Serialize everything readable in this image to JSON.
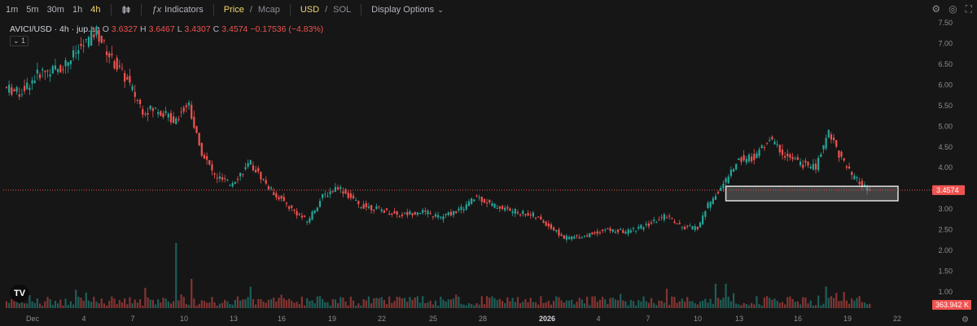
{
  "toolbar": {
    "timeframes": [
      "1m",
      "5m",
      "30m",
      "1h",
      "4h"
    ],
    "active_timeframe": "4h",
    "indicators_label": "Indicators",
    "price_label": "Price",
    "mcap_label": "Mcap",
    "usd_label": "USD",
    "sol_label": "SOL",
    "display_options_label": "Display Options"
  },
  "legend": {
    "symbol": "AVICI/USD · 4h · jup.ag",
    "open_key": "O",
    "open": "3.6327",
    "high_key": "H",
    "high": "3.6467",
    "low_key": "L",
    "low": "3.4307",
    "close_key": "C",
    "close": "3.4574",
    "change": "−0.17536 (−4.83%)",
    "series_badge": "1"
  },
  "colors": {
    "up": "#26a69a",
    "down": "#ef5350",
    "background": "#161616",
    "box": "#e0e0e0"
  },
  "price_label": "3.4574",
  "volume_label": "363.942 K",
  "chart_data": {
    "type": "candlestick",
    "title": "AVICI/USD · 4h · jup.ag",
    "y_ticks": [
      "7.50",
      "7.00",
      "6.50",
      "6.00",
      "5.50",
      "5.00",
      "4.50",
      "4.00",
      "3.50",
      "3.00",
      "2.50",
      "2.00",
      "1.50",
      "1.00"
    ],
    "ylim": [
      0.5,
      7.6
    ],
    "x_ticks": [
      "Dec",
      "4",
      "7",
      "10",
      "13",
      "16",
      "19",
      "22",
      "25",
      "28",
      "2026",
      "4",
      "7",
      "10",
      "13",
      "16",
      "19",
      "22"
    ],
    "last_price": 3.4574,
    "price_path": [
      {
        "x": 0,
        "y": 5.95
      },
      {
        "x": 6,
        "y": 5.8
      },
      {
        "x": 14,
        "y": 6.3
      },
      {
        "x": 22,
        "y": 6.4
      },
      {
        "x": 30,
        "y": 6.9
      },
      {
        "x": 36,
        "y": 7.3
      },
      {
        "x": 42,
        "y": 6.6
      },
      {
        "x": 48,
        "y": 6.1
      },
      {
        "x": 54,
        "y": 5.4
      },
      {
        "x": 60,
        "y": 5.4
      },
      {
        "x": 66,
        "y": 5.15
      },
      {
        "x": 72,
        "y": 5.55
      },
      {
        "x": 76,
        "y": 4.5
      },
      {
        "x": 82,
        "y": 3.8
      },
      {
        "x": 88,
        "y": 3.6
      },
      {
        "x": 96,
        "y": 4.1
      },
      {
        "x": 104,
        "y": 3.45
      },
      {
        "x": 112,
        "y": 3.0
      },
      {
        "x": 118,
        "y": 2.7
      },
      {
        "x": 124,
        "y": 3.3
      },
      {
        "x": 130,
        "y": 3.55
      },
      {
        "x": 138,
        "y": 3.1
      },
      {
        "x": 146,
        "y": 3.0
      },
      {
        "x": 154,
        "y": 2.85
      },
      {
        "x": 162,
        "y": 2.95
      },
      {
        "x": 170,
        "y": 2.8
      },
      {
        "x": 178,
        "y": 3.0
      },
      {
        "x": 184,
        "y": 3.3
      },
      {
        "x": 190,
        "y": 3.1
      },
      {
        "x": 198,
        "y": 2.95
      },
      {
        "x": 206,
        "y": 2.85
      },
      {
        "x": 212,
        "y": 2.6
      },
      {
        "x": 218,
        "y": 2.3
      },
      {
        "x": 226,
        "y": 2.35
      },
      {
        "x": 234,
        "y": 2.5
      },
      {
        "x": 242,
        "y": 2.45
      },
      {
        "x": 250,
        "y": 2.6
      },
      {
        "x": 258,
        "y": 2.85
      },
      {
        "x": 264,
        "y": 2.55
      },
      {
        "x": 270,
        "y": 2.55
      },
      {
        "x": 274,
        "y": 3.1
      },
      {
        "x": 280,
        "y": 3.6
      },
      {
        "x": 286,
        "y": 4.2
      },
      {
        "x": 292,
        "y": 4.25
      },
      {
        "x": 298,
        "y": 4.7
      },
      {
        "x": 304,
        "y": 4.3
      },
      {
        "x": 310,
        "y": 4.1
      },
      {
        "x": 316,
        "y": 4.0
      },
      {
        "x": 321,
        "y": 4.9
      },
      {
        "x": 326,
        "y": 4.2
      },
      {
        "x": 330,
        "y": 3.8
      },
      {
        "x": 336,
        "y": 3.46
      }
    ],
    "support_zone": {
      "x_start": 280,
      "x_end": 347,
      "y_low": 3.2,
      "y_high": 3.55
    }
  }
}
